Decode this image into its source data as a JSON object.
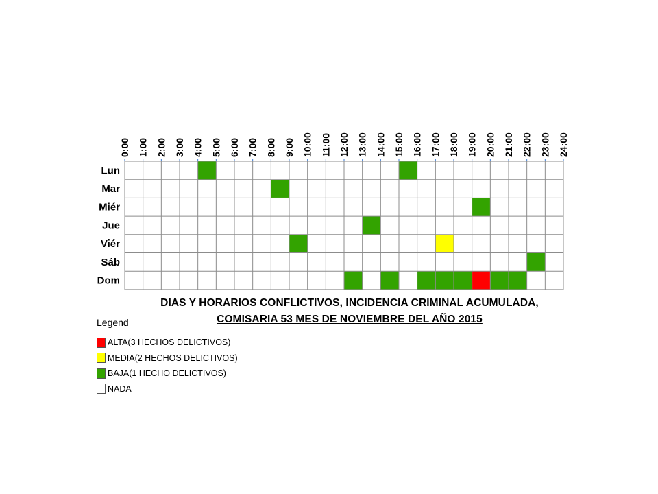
{
  "chart_data": {
    "type": "heatmap",
    "title": "DIAS Y HORARIOS CONFLICTIVOS, INCIDENCIA CRIMINAL ACUMULADA, COMISARIA 53 MES DE NOVIEMBRE DEL AÑO 2015",
    "title_lines": [
      "DIAS Y HORARIOS CONFLICTIVOS, INCIDENCIA CRIMINAL ACUMULADA,",
      "COMISARIA 53 MES DE NOVIEMBRE DEL AÑO 2015"
    ],
    "x_ticks": [
      "0:00",
      "1:00",
      "2:00",
      "3:00",
      "4:00",
      "5:00",
      "6:00",
      "7:00",
      "8:00",
      "9:00",
      "10:00",
      "11:00",
      "12:00",
      "13:00",
      "14:00",
      "15:00",
      "16:00",
      "17:00",
      "18:00",
      "19:00",
      "20:00",
      "21:00",
      "22:00",
      "23:00",
      "24:00"
    ],
    "rows": [
      "Lun",
      "Mar",
      "Miér",
      "Jue",
      "Viér",
      "Sáb",
      "Dom"
    ],
    "x_start_hour": 0,
    "x_end_hour": 24,
    "values": [
      [
        0,
        0,
        0,
        0,
        1,
        0,
        0,
        0,
        0,
        0,
        0,
        0,
        0,
        0,
        0,
        1,
        0,
        0,
        0,
        0,
        0,
        0,
        0,
        0
      ],
      [
        0,
        0,
        0,
        0,
        0,
        0,
        0,
        0,
        1,
        0,
        0,
        0,
        0,
        0,
        0,
        0,
        0,
        0,
        0,
        0,
        0,
        0,
        0,
        0
      ],
      [
        0,
        0,
        0,
        0,
        0,
        0,
        0,
        0,
        0,
        0,
        0,
        0,
        0,
        0,
        0,
        0,
        0,
        0,
        0,
        1,
        0,
        0,
        0,
        0
      ],
      [
        0,
        0,
        0,
        0,
        0,
        0,
        0,
        0,
        0,
        0,
        0,
        0,
        0,
        1,
        0,
        0,
        0,
        0,
        0,
        0,
        0,
        0,
        0,
        0
      ],
      [
        0,
        0,
        0,
        0,
        0,
        0,
        0,
        0,
        0,
        1,
        0,
        0,
        0,
        0,
        0,
        0,
        0,
        2,
        0,
        0,
        0,
        0,
        0,
        0
      ],
      [
        0,
        0,
        0,
        0,
        0,
        0,
        0,
        0,
        0,
        0,
        0,
        0,
        0,
        0,
        0,
        0,
        0,
        0,
        0,
        0,
        0,
        0,
        1,
        0
      ],
      [
        0,
        0,
        0,
        0,
        0,
        0,
        0,
        0,
        0,
        0,
        0,
        0,
        1,
        0,
        1,
        0,
        1,
        1,
        1,
        3,
        1,
        1,
        0,
        0
      ]
    ],
    "legend": {
      "title": "Legend",
      "placement": "bottom-left",
      "items": [
        {
          "label": "ALTA(3 HECHOS DELICTIVOS)",
          "value": 3,
          "color": "#ff0000"
        },
        {
          "label": "MEDIA(2 HECHOS DELICTIVOS)",
          "value": 2,
          "color": "#ffff00"
        },
        {
          "label": "BAJA(1 HECHO DELICTIVOS)",
          "value": 1,
          "color": "#33a300"
        },
        {
          "label": "NADA",
          "value": 0,
          "color": "#ffffff"
        }
      ]
    },
    "grid": true
  }
}
